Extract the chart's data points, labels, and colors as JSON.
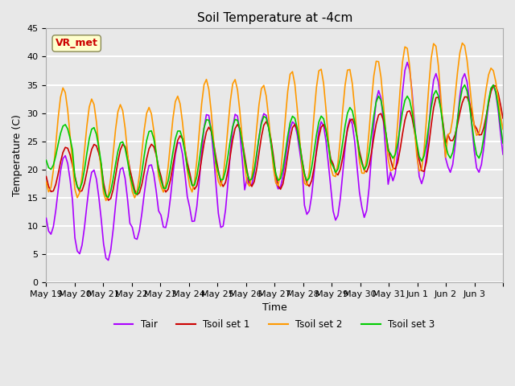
{
  "title": "Soil Temperature at -4cm",
  "xlabel": "Time",
  "ylabel": "Temperature (C)",
  "ylim": [
    0,
    45
  ],
  "xlim_days": 16,
  "legend_labels": [
    "Tair",
    "Tsoil set 1",
    "Tsoil set 2",
    "Tsoil set 3"
  ],
  "legend_colors": [
    "#aa00ff",
    "#cc0000",
    "#ff9900",
    "#00cc00"
  ],
  "annotation_text": "VR_met",
  "annotation_color": "#cc0000",
  "annotation_bg": "#ffffcc",
  "background_color": "#e8e8e8",
  "plot_bg": "#e8e8e8",
  "grid_color": "#ffffff",
  "n_cycles": 16,
  "x_tick_labels": [
    "May 19",
    "May 20",
    "May 21",
    "May 22",
    "May 23",
    "May 24",
    "May 25",
    "May 26",
    "May 27",
    "May 28",
    "May 29",
    "May 30",
    "May 31",
    "Jun 1",
    "Jun 2",
    "Jun 3"
  ],
  "tair_color": "#aa00ff",
  "tsoil1_color": "#cc0000",
  "tsoil2_color": "#ff9900",
  "tsoil3_color": "#00cc00"
}
